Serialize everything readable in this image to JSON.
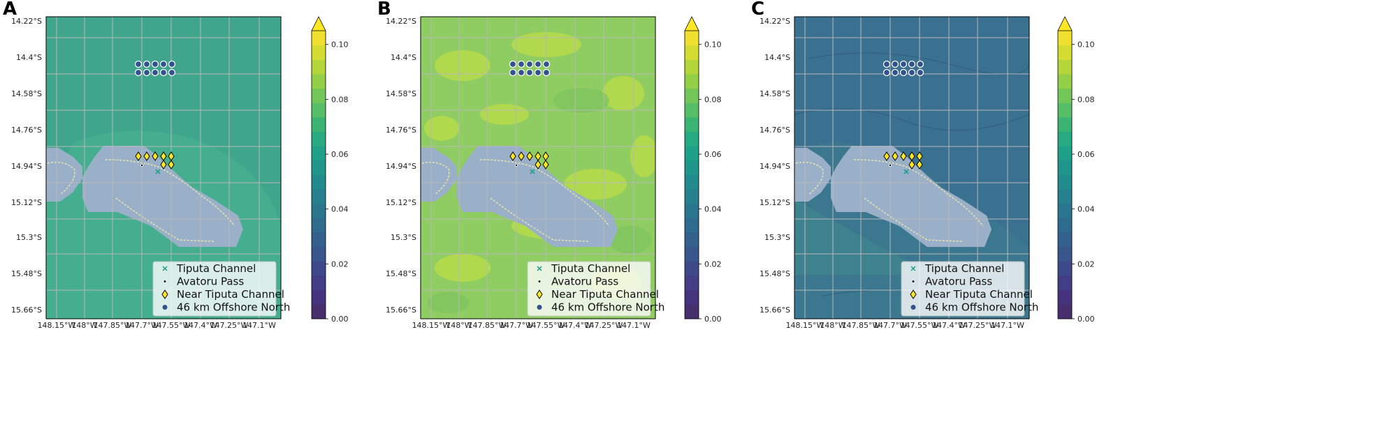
{
  "panels": [
    {
      "label": "A",
      "ocean": "#3fa68c",
      "inner_ocean": "#46b08e",
      "patch": "#3aa08c",
      "variant": "A"
    },
    {
      "label": "B",
      "ocean": "#8fcc62",
      "inner_ocean": "#a4d35a",
      "patch": "#b9dc4a",
      "variant": "B"
    },
    {
      "label": "C",
      "ocean": "#3a7090",
      "inner_ocean": "#3f8b8e",
      "patch": "#3d7b91",
      "variant": "C"
    }
  ],
  "y_ticks": [
    "14.22°S",
    "14.4°S",
    "14.58°S",
    "14.76°S",
    "14.94°S",
    "15.12°S",
    "15.3°S",
    "15.48°S",
    "15.66°S"
  ],
  "x_ticks": [
    "148.15°W",
    "148°W",
    "147.85°W",
    "147.7°W",
    "147.55°W",
    "147.4°W",
    "147.25°W",
    "147.1°W"
  ],
  "colorbar": {
    "ticks": [
      "0.00",
      "0.02",
      "0.04",
      "0.06",
      "0.08",
      "0.10"
    ],
    "min": 0,
    "max": 0.105,
    "extend": "max",
    "colors": [
      "#472f6e",
      "#46337e",
      "#433d86",
      "#3e4989",
      "#38558c",
      "#33608d",
      "#2e6b8e",
      "#2a768e",
      "#26808e",
      "#228b8d",
      "#1f958b",
      "#1fa088",
      "#28aa80",
      "#3bb473",
      "#55be66",
      "#73c658",
      "#94cf48",
      "#b4d63a",
      "#d4dc31",
      "#efe030"
    ]
  },
  "legend": [
    {
      "label": "Tiputa Channel",
      "icon": "x-marker",
      "color": "#1f9e89"
    },
    {
      "label": "Avatoru Pass",
      "icon": "dot-marker",
      "color": "#000000"
    },
    {
      "label": "Near Tiputa Channel",
      "icon": "diamond-marker",
      "color": "#fde725"
    },
    {
      "label": "46 km Offshore North",
      "icon": "circle-marker",
      "color": "#31528c"
    }
  ],
  "land_color": "#9ab0c8",
  "chart_data": [
    {
      "type": "heatmap",
      "panel": "A",
      "colorbar_range": [
        0,
        0.105
      ],
      "legend_placement": "bottom-right",
      "grid": true
    },
    {
      "type": "heatmap",
      "panel": "B",
      "colorbar_range": [
        0,
        0.105
      ],
      "legend_placement": "bottom-right",
      "grid": true
    },
    {
      "type": "heatmap",
      "panel": "C",
      "colorbar_range": [
        0,
        0.105
      ],
      "legend_placement": "bottom-right",
      "grid": true
    }
  ]
}
